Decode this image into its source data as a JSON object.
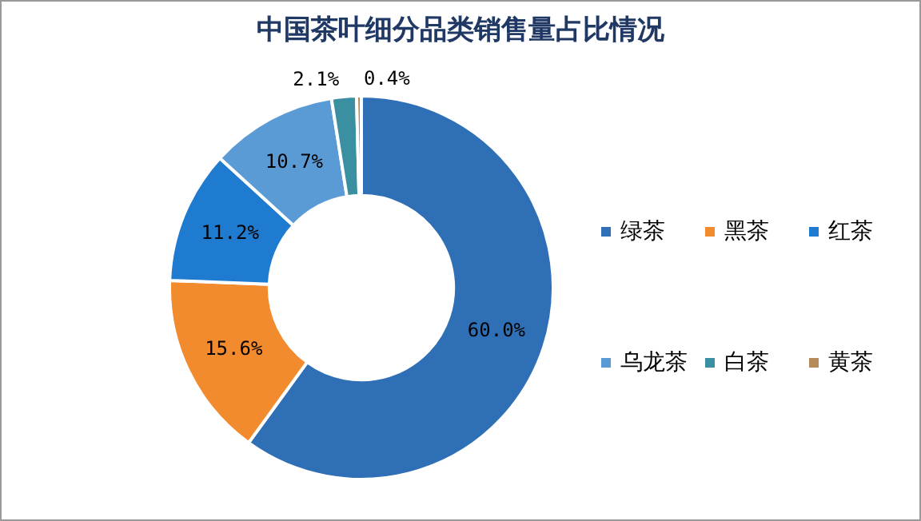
{
  "chart_data": {
    "type": "donut",
    "title": "中国茶叶细分品类销售量占比情况",
    "categories": [
      "绿茶",
      "黑茶",
      "红茶",
      "乌龙茶",
      "白茶",
      "黄茶"
    ],
    "values": [
      60.0,
      15.6,
      11.2,
      10.7,
      2.1,
      0.4
    ],
    "colors": [
      "#2e6fb5",
      "#f28a2e",
      "#1f7bd0",
      "#5b9bd5",
      "#3a8fa0",
      "#b58a5a"
    ],
    "value_labels": [
      "60.0%",
      "15.6%",
      "11.2%",
      "10.7%",
      "2.1%",
      "0.4%"
    ],
    "legend": "right"
  }
}
